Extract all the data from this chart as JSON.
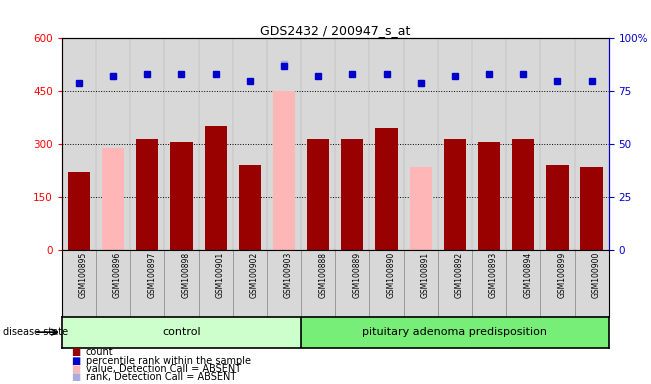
{
  "title": "GDS2432 / 200947_s_at",
  "samples": [
    "GSM100895",
    "GSM100896",
    "GSM100897",
    "GSM100898",
    "GSM100901",
    "GSM100902",
    "GSM100903",
    "GSM100888",
    "GSM100889",
    "GSM100890",
    "GSM100891",
    "GSM100892",
    "GSM100893",
    "GSM100894",
    "GSM100899",
    "GSM100900"
  ],
  "count_values": [
    220,
    null,
    315,
    305,
    350,
    240,
    null,
    315,
    315,
    345,
    null,
    315,
    305,
    315,
    240,
    235
  ],
  "absent_value_values": [
    null,
    290,
    null,
    null,
    null,
    null,
    450,
    null,
    null,
    null,
    235,
    null,
    null,
    null,
    null,
    null
  ],
  "percentile_rank": [
    79,
    82,
    83,
    83,
    83,
    80,
    87,
    82,
    83,
    83,
    79,
    82,
    83,
    83,
    80,
    80
  ],
  "absent_rank": [
    null,
    82,
    null,
    null,
    null,
    null,
    88,
    null,
    null,
    null,
    79,
    null,
    null,
    null,
    null,
    null
  ],
  "n_control": 7,
  "n_disease": 9,
  "group_labels": [
    "control",
    "pituitary adenoma predisposition"
  ],
  "ylim_left": [
    0,
    600
  ],
  "ylim_right": [
    0,
    100
  ],
  "yticks_left": [
    0,
    150,
    300,
    450,
    600
  ],
  "yticks_right": [
    0,
    25,
    50,
    75,
    100
  ],
  "bar_color_dark_red": "#990000",
  "bar_color_pink": "#ffb6b6",
  "dot_color_blue": "#0000cc",
  "dot_color_light_blue": "#aaaadd",
  "background_plot": "#d8d8d8",
  "background_control": "#ccffcc",
  "background_disease": "#77ee77",
  "legend_items": [
    {
      "color": "#990000",
      "label": "count"
    },
    {
      "color": "#0000cc",
      "label": "percentile rank within the sample"
    },
    {
      "color": "#ffb6b6",
      "label": "value, Detection Call = ABSENT"
    },
    {
      "color": "#aaaadd",
      "label": "rank, Detection Call = ABSENT"
    }
  ]
}
